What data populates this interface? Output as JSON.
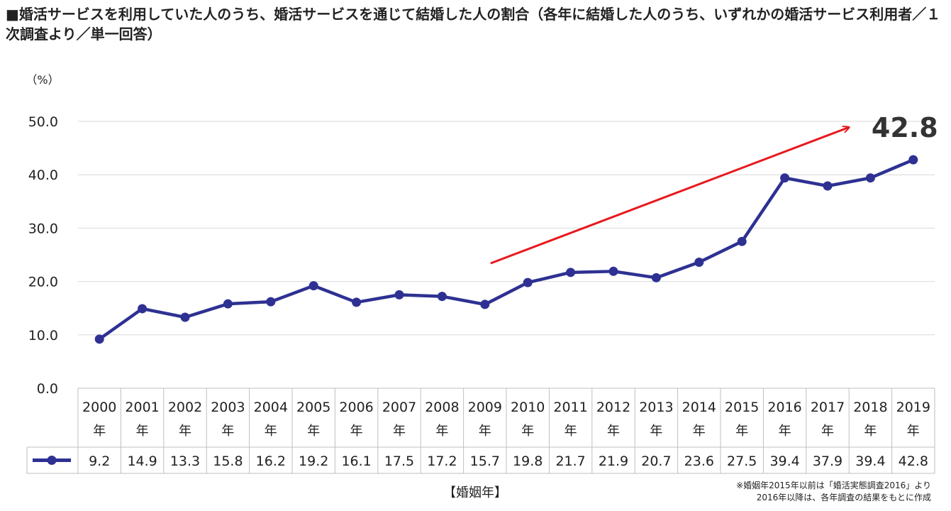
{
  "title": "■婚活サービスを利用していた人のうち、婚活サービスを通じて結婚した人の割合（各年に結婚した人のうち、いずれかの婚活サービス利用者／１次調査より／単一回答）",
  "notes": [
    "※婚姻年2015年以前は「婚活実態調査2016」より",
    "2016年以降は、各年調査の結果をもとに作成"
  ],
  "chart_data": {
    "type": "line",
    "title": "■婚活サービスを利用していた人のうち、婚活サービスを通じて結婚した人の割合（各年に結婚した人のうち、いずれかの婚活サービス利用者／１次調査より／単一回答）",
    "ylabel": "（%）",
    "xlabel": "【婚姻年】",
    "ylim": [
      0,
      50
    ],
    "yticks": [
      "0.0",
      "10.0",
      "20.0",
      "30.0",
      "40.0",
      "50.0"
    ],
    "grid": true,
    "categories": [
      "2000",
      "2001",
      "2002",
      "2003",
      "2004",
      "2005",
      "2006",
      "2007",
      "2008",
      "2009",
      "2010",
      "2011",
      "2012",
      "2013",
      "2014",
      "2015",
      "2016",
      "2017",
      "2018",
      "2019"
    ],
    "category_suffix": "年",
    "values": [
      9.2,
      14.9,
      13.3,
      15.8,
      16.2,
      19.2,
      16.1,
      17.5,
      17.2,
      15.7,
      19.8,
      21.7,
      21.9,
      20.7,
      23.6,
      27.5,
      39.4,
      37.9,
      39.4,
      42.8
    ],
    "value_labels": [
      "9.2",
      "14.9",
      "13.3",
      "15.8",
      "16.2",
      "19.2",
      "16.1",
      "17.5",
      "17.2",
      "15.7",
      "19.8",
      "21.7",
      "21.9",
      "20.7",
      "23.6",
      "27.5",
      "39.4",
      "37.9",
      "39.4",
      "42.8"
    ],
    "highlight_label": "42.8",
    "data_table": true,
    "colors": {
      "series": "#2e3192",
      "arrow": "#e8191e",
      "grid": "#d9d9d9",
      "table": "#bfbfbf"
    },
    "annotations": [
      {
        "type": "arrow",
        "from_year": "2009",
        "to_year": "2018",
        "color": "#e8191e"
      }
    ]
  }
}
